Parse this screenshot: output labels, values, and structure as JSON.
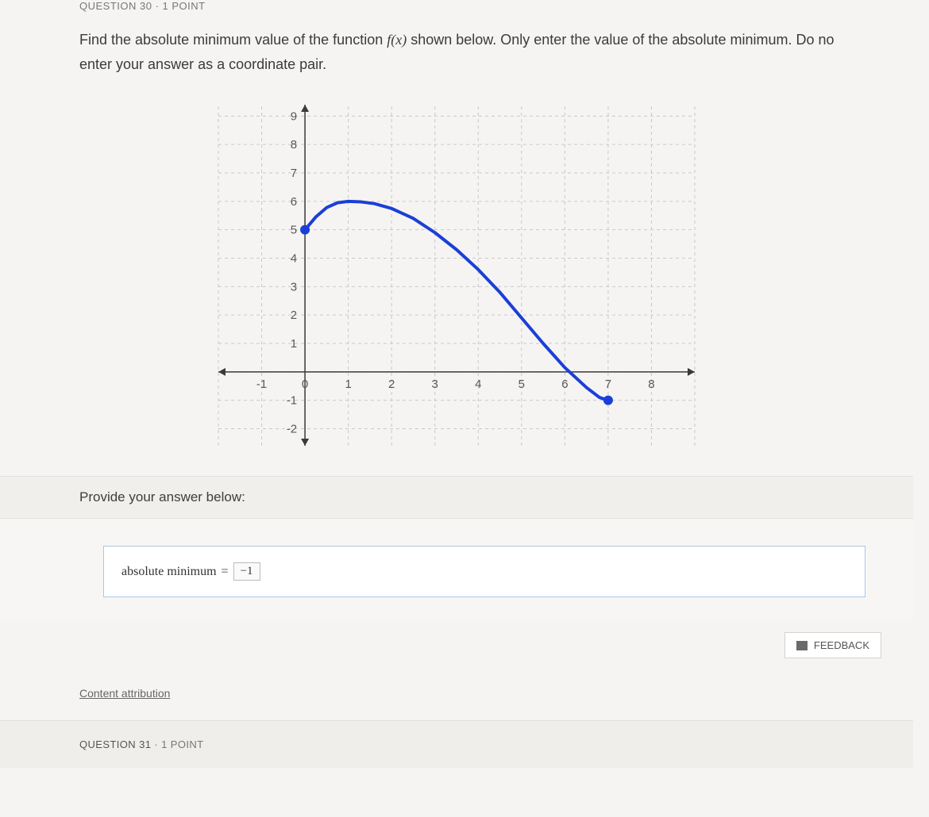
{
  "top_question_fragment": "QUESTION 30 · 1 POINT",
  "prompt": {
    "line1_prefix": "Find the absolute minimum value of the function ",
    "fn": "f(x)",
    "line1_suffix": " shown below. Only enter the value of the absolute minimum. Do no",
    "line2": "enter your answer as a coordinate pair."
  },
  "chart": {
    "type": "line",
    "x_ticks": [
      -1,
      0,
      1,
      2,
      3,
      4,
      5,
      6,
      7,
      8
    ],
    "y_ticks": [
      -2,
      -1,
      0,
      1,
      2,
      3,
      4,
      5,
      6,
      7,
      8,
      9
    ],
    "xlim": [
      -2,
      9
    ],
    "ylim": [
      -2.6,
      9.4
    ],
    "grid_color": "#c9c9c9",
    "axis_color": "#3a3a3a",
    "number_color": "#585858",
    "number_fontsize": 15,
    "curve_color": "#1b3fd6",
    "curve_width": 4,
    "endpoint_fill": "#1b3fd6",
    "endpoint_radius": 6,
    "curve_points": [
      [
        0,
        5.0
      ],
      [
        0.25,
        5.45
      ],
      [
        0.5,
        5.78
      ],
      [
        0.75,
        5.95
      ],
      [
        1.0,
        6.0
      ],
      [
        1.3,
        5.98
      ],
      [
        1.6,
        5.92
      ],
      [
        2.0,
        5.75
      ],
      [
        2.5,
        5.4
      ],
      [
        3.0,
        4.9
      ],
      [
        3.5,
        4.3
      ],
      [
        4.0,
        3.6
      ],
      [
        4.5,
        2.8
      ],
      [
        5.0,
        1.9
      ],
      [
        5.5,
        1.0
      ],
      [
        6.0,
        0.15
      ],
      [
        6.5,
        -0.55
      ],
      [
        6.8,
        -0.9
      ],
      [
        7.0,
        -1.0
      ]
    ],
    "closed_endpoints": [
      [
        0,
        5.0
      ],
      [
        7,
        -1.0
      ]
    ],
    "background_color": "#f9f8f6"
  },
  "answer_section": {
    "heading": "Provide your answer below:",
    "label": "absolute minimum",
    "value": "−1",
    "cursor_glyph": "I"
  },
  "feedback_label": "FEEDBACK",
  "attribution_label": "Content attribution",
  "bottom_question": {
    "qnum": "QUESTION 31",
    "points": "1 POINT"
  }
}
